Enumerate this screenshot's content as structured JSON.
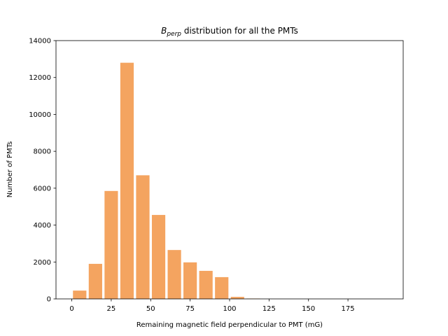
{
  "chart_data": {
    "type": "bar",
    "title_main": "B",
    "title_sub": "perp",
    "title_rest": " distribution for all the PMTs",
    "xlabel": "Remaining magnetic field perpendicular to PMT (mG)",
    "ylabel": "Number of PMTs",
    "xlim": [
      -10,
      210
    ],
    "ylim": [
      0,
      14000
    ],
    "xticks": [
      0,
      25,
      50,
      75,
      100,
      125,
      150,
      175
    ],
    "yticks": [
      0,
      2000,
      4000,
      6000,
      8000,
      10000,
      12000,
      14000
    ],
    "bin_width": 10,
    "bar_fraction": 0.85,
    "bar_color": "#f4a460",
    "bins": [
      0,
      10,
      20,
      30,
      40,
      50,
      60,
      70,
      80,
      90,
      100,
      110
    ],
    "values": [
      450,
      1900,
      5850,
      12800,
      6700,
      4550,
      2650,
      1980,
      1520,
      1180,
      110,
      20
    ]
  }
}
